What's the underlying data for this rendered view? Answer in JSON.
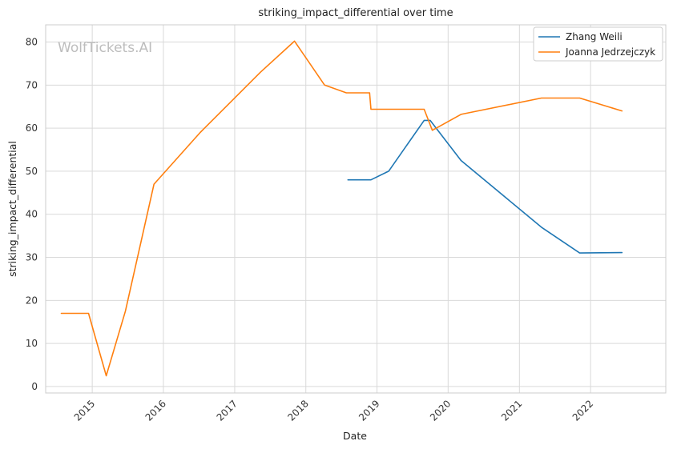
{
  "chart_data": {
    "type": "line",
    "title": "striking_impact_differential over time",
    "xlabel": "Date",
    "ylabel": "striking_impact_differential",
    "watermark": "WolfTickets.AI",
    "xlim": [
      "2014-05-07",
      "2023-01-22"
    ],
    "ylim": [
      -1.5,
      84
    ],
    "xticks": [
      {
        "date": "2015-01-01",
        "label": "2015"
      },
      {
        "date": "2016-01-01",
        "label": "2016"
      },
      {
        "date": "2017-01-01",
        "label": "2017"
      },
      {
        "date": "2018-01-01",
        "label": "2018"
      },
      {
        "date": "2019-01-01",
        "label": "2019"
      },
      {
        "date": "2020-01-01",
        "label": "2020"
      },
      {
        "date": "2021-01-01",
        "label": "2021"
      },
      {
        "date": "2022-01-01",
        "label": "2022"
      }
    ],
    "yticks": [
      0,
      10,
      20,
      30,
      40,
      50,
      60,
      70,
      80
    ],
    "grid": true,
    "legend_position": "top-right",
    "series": [
      {
        "name": "Zhang Weili",
        "color": "#1f77b4",
        "points": [
          [
            "2018-08-05",
            48.0
          ],
          [
            "2018-12-01",
            48.0
          ],
          [
            "2019-03-02",
            50.0
          ],
          [
            "2019-08-31",
            61.8
          ],
          [
            "2019-10-01",
            61.8
          ],
          [
            "2020-03-07",
            52.5
          ],
          [
            "2021-04-24",
            37.0
          ],
          [
            "2021-11-06",
            31.0
          ],
          [
            "2022-06-11",
            31.1
          ]
        ]
      },
      {
        "name": "Joanna Jedrzejczyk",
        "color": "#ff7f0e",
        "points": [
          [
            "2014-07-26",
            17.0
          ],
          [
            "2014-12-13",
            17.0
          ],
          [
            "2015-03-14",
            2.5
          ],
          [
            "2015-06-20",
            17.5
          ],
          [
            "2015-11-14",
            47.0
          ],
          [
            "2016-07-08",
            59.0
          ],
          [
            "2017-05-13",
            73.0
          ],
          [
            "2017-11-04",
            80.2
          ],
          [
            "2018-04-07",
            70.0
          ],
          [
            "2018-07-28",
            68.2
          ],
          [
            "2018-11-24",
            68.2
          ],
          [
            "2018-12-01",
            64.4
          ],
          [
            "2019-08-31",
            64.4
          ],
          [
            "2019-10-12",
            59.5
          ],
          [
            "2020-03-07",
            63.2
          ],
          [
            "2021-04-24",
            67.0
          ],
          [
            "2021-11-06",
            67.0
          ],
          [
            "2022-06-11",
            64.0
          ]
        ]
      }
    ]
  }
}
